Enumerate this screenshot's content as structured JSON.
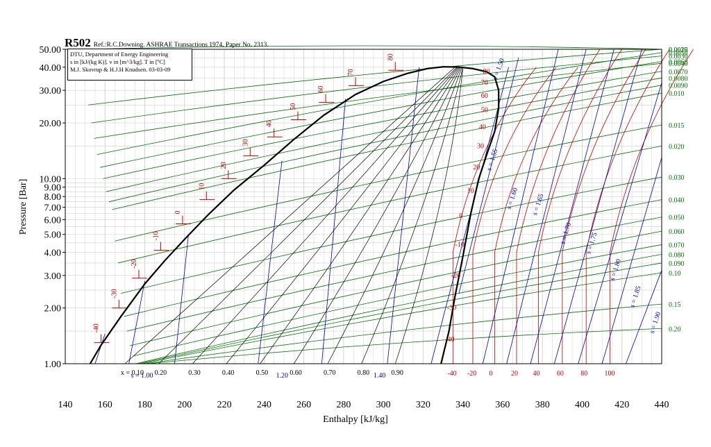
{
  "chart_data": {
    "type": "line",
    "title": "R502",
    "subtitle": "Ref.:R.C.Downing. ASHRAE Transactions 1974. Paper No. 2313.",
    "info_box": [
      "DTU, Department of Energy Engineering",
      "s in [kJ/(kg K)]. v in [m^3/kg]. T in [ºC]",
      "M.J. Skovrup & H.J.H Knudsen. 03-03-09"
    ],
    "xlabel": "Enthalpy [kJ/kg]",
    "ylabel": "Pressure [Bar]",
    "xlim": [
      150,
      370
    ],
    "ylim": [
      1,
      50
    ],
    "y_scale": "log",
    "grid": true,
    "x_ticks": [
      140,
      160,
      180,
      200,
      220,
      240,
      260,
      280,
      300,
      320,
      340,
      360,
      380,
      400,
      420,
      440
    ],
    "y_ticks": [
      {
        "value": 50,
        "label": "50.00"
      },
      {
        "value": 40,
        "label": "40.00"
      },
      {
        "value": 30,
        "label": "30.00"
      },
      {
        "value": 20,
        "label": "20.00"
      },
      {
        "value": 10,
        "label": "10.00"
      },
      {
        "value": 9,
        "label": "9.00"
      },
      {
        "value": 8,
        "label": "8.00"
      },
      {
        "value": 7,
        "label": "7.00"
      },
      {
        "value": 6,
        "label": "6.00"
      },
      {
        "value": 5,
        "label": "5.00"
      },
      {
        "value": 4,
        "label": "4.00"
      },
      {
        "value": 3,
        "label": "3.00"
      },
      {
        "value": 2,
        "label": "2.00"
      },
      {
        "value": 1,
        "label": "1.00"
      }
    ],
    "colors": {
      "saturation": "#000000",
      "isotherm": "#c00000",
      "isentrope": "#0000b0",
      "isochore": "#007000",
      "quality": "#000000"
    },
    "saturation_dome": {
      "liquid": [
        [
          152.5,
          1.0
        ],
        [
          158,
          1.26
        ],
        [
          168,
          1.8
        ],
        [
          180,
          2.7
        ],
        [
          190,
          3.6
        ],
        [
          200,
          4.7
        ],
        [
          212,
          6.4
        ],
        [
          225,
          8.7
        ],
        [
          240,
          11.8
        ],
        [
          255,
          16.3
        ],
        [
          270,
          22
        ],
        [
          286,
          28.5
        ],
        [
          300,
          33.5
        ],
        [
          312,
          37
        ],
        [
          322,
          39.3
        ],
        [
          330,
          40.2
        ]
      ],
      "vapor": [
        [
          330,
          40.2
        ],
        [
          338,
          40.1
        ],
        [
          345,
          39.3
        ],
        [
          352,
          37.8
        ],
        [
          356,
          35.5
        ],
        [
          358,
          30
        ],
        [
          358,
          24
        ],
        [
          356,
          18
        ],
        [
          352,
          13.5
        ],
        [
          348,
          10
        ],
        [
          344,
          6.5
        ],
        [
          340,
          3.8
        ],
        [
          336,
          2.3
        ],
        [
          333,
          1.5
        ],
        [
          329,
          1.0
        ]
      ]
    },
    "quality_lines": [
      {
        "label": "x = 0.10",
        "h_low": 170,
        "h_high": 336
      },
      {
        "label": "0.20",
        "h_low": 187,
        "h_high": 337
      },
      {
        "label": "0.30",
        "h_low": 204,
        "h_high": 337.5
      },
      {
        "label": "0.40",
        "h_low": 221,
        "h_high": 338
      },
      {
        "label": "0.50",
        "h_low": 238,
        "h_high": 338.5
      },
      {
        "label": "0.60",
        "h_low": 255,
        "h_high": 339
      },
      {
        "label": "0.70",
        "h_low": 272,
        "h_high": 339.5
      },
      {
        "label": "0.80",
        "h_low": 289,
        "h_high": 340
      },
      {
        "label": "0.90",
        "h_low": 306,
        "h_high": 340
      }
    ],
    "sat_temperatures": [
      {
        "T": "-40",
        "h": 158,
        "p": 1.3
      },
      {
        "T": "-30",
        "h": 167,
        "p": 2.0
      },
      {
        "T": "-20",
        "h": 177,
        "p": 2.9
      },
      {
        "T": "-10",
        "h": 188,
        "p": 4.1
      },
      {
        "T": "0",
        "h": 199,
        "p": 5.7
      },
      {
        "T": "10",
        "h": 211,
        "p": 7.7
      },
      {
        "T": "20",
        "h": 222,
        "p": 10.0
      },
      {
        "T": "30",
        "h": 233,
        "p": 13.3
      },
      {
        "T": "40",
        "h": 245,
        "p": 16.8
      },
      {
        "T": "50",
        "h": 257,
        "p": 20.8
      },
      {
        "T": "60",
        "h": 271,
        "p": 25.8
      },
      {
        "T": "70",
        "h": 286,
        "p": 31.8
      },
      {
        "T": "80",
        "h": 306,
        "p": 38.5
      }
    ],
    "isotherm_vapor_labels": [
      {
        "T": "80",
        "h": 355,
        "p": 38
      },
      {
        "T": "70",
        "h": 354,
        "p": 33
      },
      {
        "T": "60",
        "h": 354,
        "p": 28
      },
      {
        "T": "50",
        "h": 354,
        "p": 23.5
      },
      {
        "T": "40",
        "h": 353,
        "p": 19
      },
      {
        "T": "30",
        "h": 352,
        "p": 15
      },
      {
        "T": "20",
        "h": 350,
        "p": 11.5
      },
      {
        "T": "10",
        "h": 347,
        "p": 8.6
      },
      {
        "T": "0",
        "h": 343,
        "p": 6.3
      },
      {
        "T": "-10",
        "h": 341,
        "p": 4.4
      },
      {
        "T": "-20",
        "h": 339,
        "p": 3.0
      },
      {
        "T": "-30",
        "h": 337,
        "p": 2.0
      },
      {
        "T": "-40",
        "h": 336,
        "p": 1.35
      }
    ],
    "isotherm_bottom_labels": [
      "-40",
      "-20",
      "0",
      "20",
      "40",
      "60",
      "80",
      "100"
    ],
    "isotherm_bottom_h": [
      335,
      345,
      356,
      367,
      378,
      390,
      402,
      414
    ],
    "isentropes": [
      {
        "s": 0.9,
        "h1": 155,
        "p1": 1.0,
        "h2": 160,
        "p2": 1.45
      },
      {
        "s": 1.0,
        "h1": 172,
        "p1": 1.0,
        "h2": 180,
        "p2": 2.8
      },
      {
        "s": 1.1,
        "h1": 195,
        "p1": 1.0,
        "h2": 202,
        "p2": 5.0
      },
      {
        "s": 1.2,
        "h1": 237,
        "p1": 1.0,
        "h2": 249,
        "p2": 12.5
      },
      {
        "s": 1.3,
        "h1": 269,
        "p1": 1.0,
        "h2": 281,
        "p2": 27
      },
      {
        "s": 1.4,
        "h1": 302,
        "p1": 1.0,
        "h2": 318,
        "p2": 40
      },
      {
        "s": 1.5,
        "h1": 324,
        "p1": 1.0,
        "h2": 363,
        "p2": 40
      },
      {
        "s": 1.55,
        "h1": 338,
        "p1": 2.4,
        "h2": 368,
        "p2": 45
      },
      {
        "s": 1.6,
        "h1": 350,
        "p1": 1.0,
        "h2": 388,
        "p2": 50
      },
      {
        "s": 1.65,
        "h1": 362,
        "p1": 1.0,
        "h2": 402,
        "p2": 50
      },
      {
        "s": 1.7,
        "h1": 374,
        "p1": 1.0,
        "h2": 416,
        "p2": 50
      },
      {
        "s": 1.75,
        "h1": 386,
        "p1": 1.0,
        "h2": 430,
        "p2": 50
      },
      {
        "s": 1.8,
        "h1": 398,
        "p1": 1.0,
        "h2": 440,
        "p2": 33
      },
      {
        "s": 1.85,
        "h1": 410,
        "p1": 1.0,
        "h2": 440,
        "p2": 13
      },
      {
        "s": 1.9,
        "h1": 422,
        "p1": 1.0,
        "h2": 440,
        "p2": 3.2
      }
    ],
    "isentrope_labels": [
      {
        "text": "s = 1.00",
        "h": 173,
        "p": 0.84,
        "angle": 0
      },
      {
        "text": "1.20",
        "h": 246,
        "p": 0.84,
        "angle": 0
      },
      {
        "text": "1.40",
        "h": 295,
        "p": 0.84,
        "angle": 0
      },
      {
        "text": "s = 1.50",
        "h": 357,
        "p": 34,
        "angle": -70
      },
      {
        "text": "s = 1.55",
        "h": 354,
        "p": 11,
        "angle": -72
      },
      {
        "text": "s = 1.60",
        "h": 364,
        "p": 6.8,
        "angle": -72
      },
      {
        "text": "s = 1.65",
        "h": 377,
        "p": 6.3,
        "angle": -72
      },
      {
        "text": "s = 1.70",
        "h": 391,
        "p": 4.4,
        "angle": -72
      },
      {
        "text": "s = 1.75",
        "h": 404,
        "p": 3.9,
        "angle": -72
      },
      {
        "text": "s = 1.80",
        "h": 416,
        "p": 2.8,
        "angle": -72
      },
      {
        "text": "s = 1.85",
        "h": 426,
        "p": 2.0,
        "angle": -72
      },
      {
        "text": "s = 1.90",
        "h": 436,
        "p": 1.45,
        "angle": -72
      }
    ],
    "isochores": [
      {
        "v": "0.0015",
        "label": "v = 0.0015",
        "p_left": 50,
        "p_right": 50
      },
      {
        "v": "0.0020",
        "label": "v = 0.0020",
        "p_left": 25,
        "p_right": 50
      },
      {
        "v": "0.0030",
        "label": "v = 0.0030",
        "p_left": 20,
        "p_right": 46
      },
      {
        "v": "0.0040",
        "label": "v = 0.0040",
        "p_left": 16.5,
        "p_right": 42
      },
      {
        "v": "0.0050",
        "label": "v = 0.0050",
        "p_left": 13.5,
        "p_right": 48
      },
      {
        "v": "0.0060",
        "label": "v = 0.0060",
        "p_left": 11.5,
        "p_right": 43
      },
      {
        "v": "0.0070",
        "label": "v = 0.0070",
        "p_left": 10,
        "p_right": 38
      },
      {
        "v": "0.0080",
        "label": "v = 0.0080",
        "p_left": 8.5,
        "p_right": 35
      },
      {
        "v": "0.0090",
        "label": "v = 0.0090",
        "p_left": 7.5,
        "p_right": 32
      },
      {
        "v": "0.010",
        "label": "v = 0.010",
        "p_left": 6.8,
        "p_right": 29
      },
      {
        "v": "0.015",
        "label": "v = 0.015",
        "p_left": 4.6,
        "p_right": 19.5
      },
      {
        "v": "0.020",
        "label": "v = 0.020",
        "p_left": 3.5,
        "p_right": 15
      },
      {
        "v": "0.030",
        "label": "v = 0.030",
        "p_left": 2.4,
        "p_right": 10.2
      },
      {
        "v": "0.040",
        "label": "v = 0.040",
        "p_left": 1.8,
        "p_right": 7.7
      },
      {
        "v": "0.050",
        "label": "0.050",
        "p_left": 1.5,
        "p_right": 6.2
      },
      {
        "v": "0.060",
        "label": "v = 0.060",
        "p_left": 1.25,
        "p_right": 5.2
      },
      {
        "v": "0.070",
        "label": "0.070",
        "p_left": 1.1,
        "p_right": 4.4
      },
      {
        "v": "0.080",
        "label": "v = 0.080",
        "p_left": 1.0,
        "p_right": 3.9
      },
      {
        "v": "0.090",
        "label": "0.090",
        "p_left": 1.0,
        "p_right": 3.5
      },
      {
        "v": "0.10",
        "label": "v = 0.10",
        "p_left": 1.0,
        "p_right": 3.1
      },
      {
        "v": "0.15",
        "label": "0.15",
        "p_left": 1.0,
        "p_right": 2.1
      },
      {
        "v": "0.20",
        "label": "0.20",
        "p_left": 1.0,
        "p_right": 1.55
      }
    ]
  }
}
